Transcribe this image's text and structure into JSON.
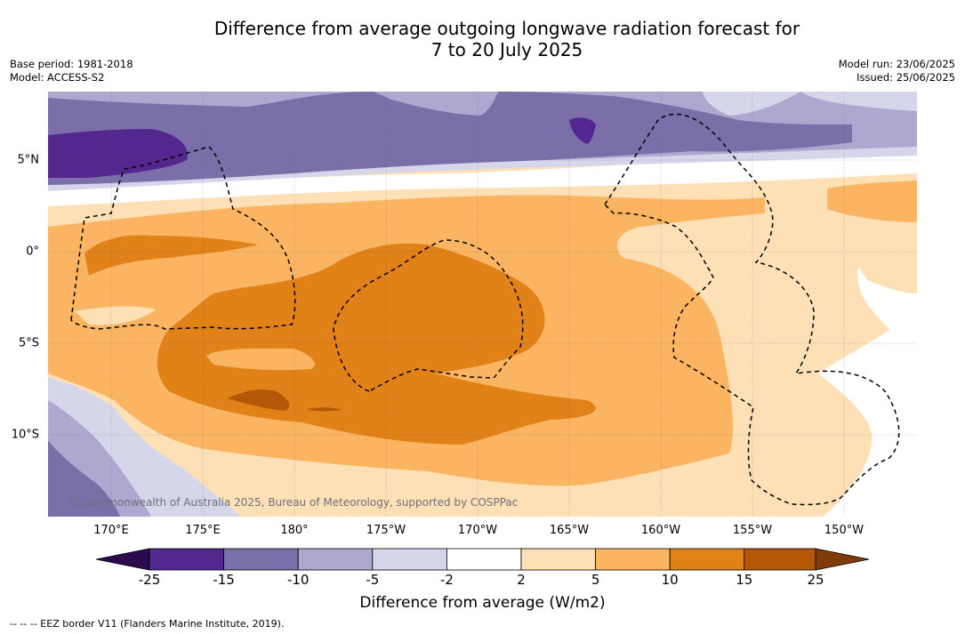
{
  "title": {
    "line1": "Difference from average outgoing longwave radiation forecast for",
    "line2": "7 to 20 July 2025"
  },
  "meta": {
    "base_period": "Base period: 1981-2018",
    "model": "Model: ACCESS-S2",
    "model_run": "Model run: 23/06/2025",
    "issued": "Issued: 25/06/2025"
  },
  "map": {
    "lat_labels": [
      "5°N",
      "0°",
      "5°S",
      "10°S"
    ],
    "lon_labels": [
      "170°E",
      "175°E",
      "180°",
      "175°W",
      "170°W",
      "165°W",
      "160°W",
      "155°W",
      "150°W"
    ],
    "copyright": "© Commonwealth of Australia 2025, Bureau of Meteorology, supported by COSPPac"
  },
  "colorbar": {
    "label": "Difference from average (W/m2)",
    "ticks": [
      "-25",
      "-15",
      "-10",
      "-5",
      "-2",
      "2",
      "5",
      "10",
      "15",
      "25"
    ],
    "colors": {
      "below": "#2d0a4e",
      "neg25_15": "#54278f",
      "neg15_10": "#7b6faa",
      "neg10_5": "#aea8d1",
      "neg5_2": "#d6d6ea",
      "neutral": "#ffffff",
      "pos2_5": "#fde0b6",
      "pos5_10": "#fbb562",
      "pos10_15": "#e08218",
      "pos15_25": "#b35806",
      "above": "#7f3b08"
    }
  },
  "footer": "--  --  -- EEZ border V11 (Flanders Marine Institute, 2019)."
}
